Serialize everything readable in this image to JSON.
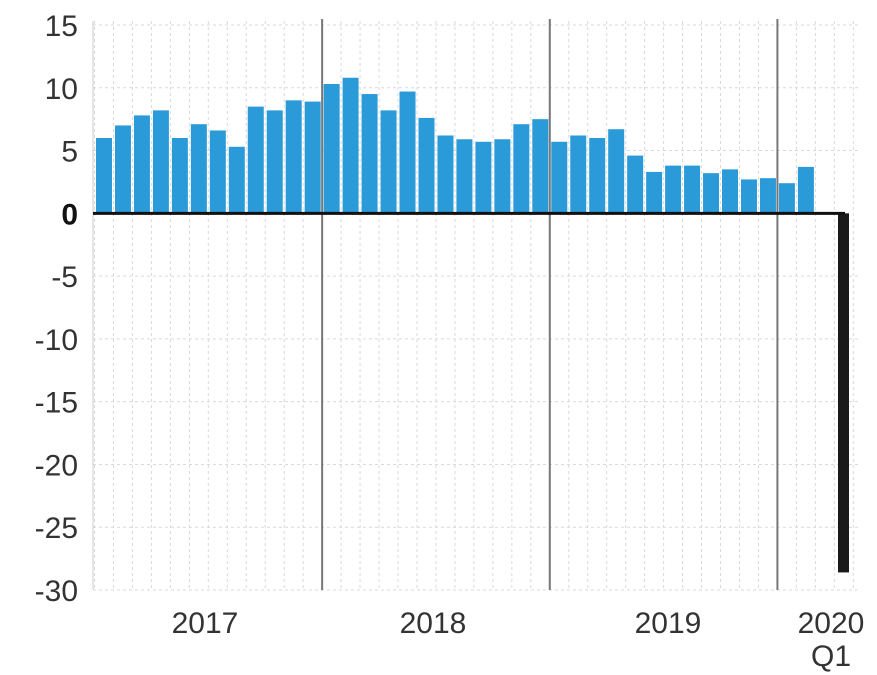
{
  "chart_data": {
    "type": "bar",
    "title": "",
    "xlabel": "",
    "ylabel": "",
    "ylim": [
      -30,
      15
    ],
    "y_ticks": [
      15,
      10,
      5,
      0,
      -5,
      -10,
      -15,
      -20,
      -25,
      -30
    ],
    "y_tick_labels": [
      "15",
      "10",
      "5",
      "0",
      "-5",
      "-10",
      "-15",
      "-20",
      "-25",
      "-30"
    ],
    "x_group_labels": [
      "2017",
      "2018",
      "2019",
      "2020",
      "Q1"
    ],
    "grid": true,
    "legend": "none",
    "colors": {
      "positive": "#2b9ad8",
      "negative": "#1a1a1a",
      "grid": "#d9d9d9",
      "divider": "#777777"
    },
    "series": [
      {
        "values": [
          6.0,
          7.0,
          7.8,
          8.2,
          6.0,
          7.1,
          6.6,
          5.3,
          8.5,
          8.2,
          9.0,
          8.9,
          10.3,
          10.8,
          9.5,
          8.2,
          9.7,
          7.6,
          6.2,
          5.9,
          5.7,
          5.9,
          7.1,
          7.5,
          5.7,
          6.2,
          6.0,
          6.7,
          4.6,
          3.3,
          3.8,
          3.8,
          3.2,
          3.5,
          2.7,
          2.8,
          2.4,
          3.7,
          -28.6
        ]
      }
    ]
  }
}
